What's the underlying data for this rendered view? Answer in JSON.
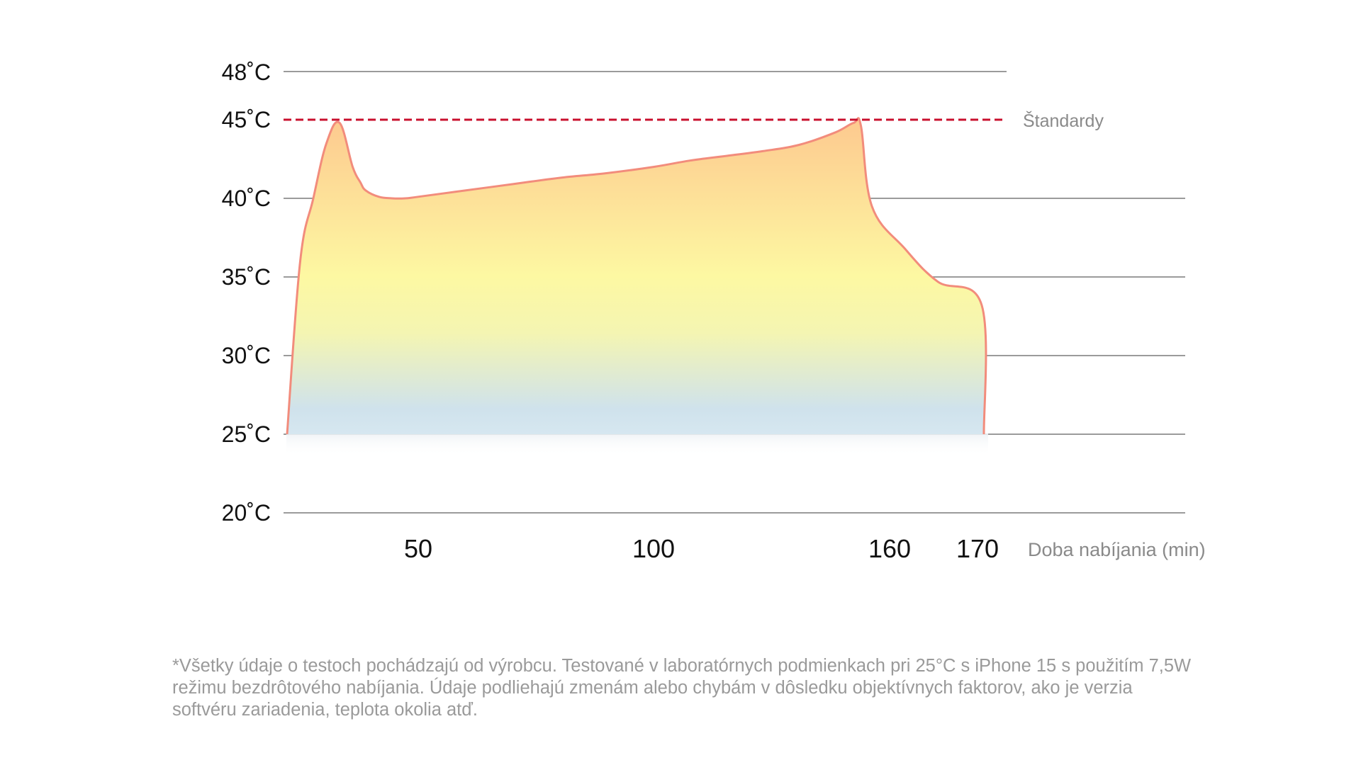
{
  "chart_data": {
    "type": "area",
    "title": "",
    "xlabel": "Doba nabíjania (min)",
    "ylabel": "",
    "y_ticks": [
      "20˚C",
      "25˚C",
      "30˚C",
      "35˚C",
      "40˚C",
      "45˚C",
      "48˚C"
    ],
    "x_ticks": [
      "50",
      "100",
      "160",
      "170"
    ],
    "series": [
      {
        "x": [
          0,
          5,
          10,
          15,
          20,
          25,
          28,
          30,
          35,
          40,
          45,
          50,
          60,
          70,
          80,
          90,
          100,
          110,
          120,
          130,
          140,
          150,
          155,
          157,
          160,
          163,
          166,
          170,
          172
        ],
        "y": [
          25,
          36,
          40,
          43.5,
          44.8,
          42,
          41,
          40.5,
          40.1,
          40,
          40,
          40.1,
          40.5,
          40.9,
          41.3,
          41.6,
          42,
          42.4,
          42.7,
          43,
          43.4,
          44.2,
          44.8,
          44.6,
          39.5,
          36.8,
          34.7,
          33.2,
          25
        ]
      }
    ],
    "reference_lines": [
      {
        "label": "Štandardy",
        "y": 45,
        "style": "dashed",
        "color": "#c8102e"
      }
    ],
    "grid": true,
    "colors": {
      "line": "#f28c7c",
      "fill_top": "#fdc98f",
      "fill_mid": "#fdf8a2",
      "fill_bottom": "#cfe2ec",
      "grid": "#9b9b9b",
      "reference": "#c8102e"
    }
  },
  "footnote": "*Všetky údaje o testoch pochádzajú od výrobcu. Testované v laboratórnych podmienkach pri 25°C s iPhone 15 s použitím 7,5W režimu bezdrôtového nabíjania. Údaje podliehajú zmenám alebo chybám v dôsledku objektívnych faktorov, ako je verzia softvéru zariadenia, teplota okolia atď."
}
